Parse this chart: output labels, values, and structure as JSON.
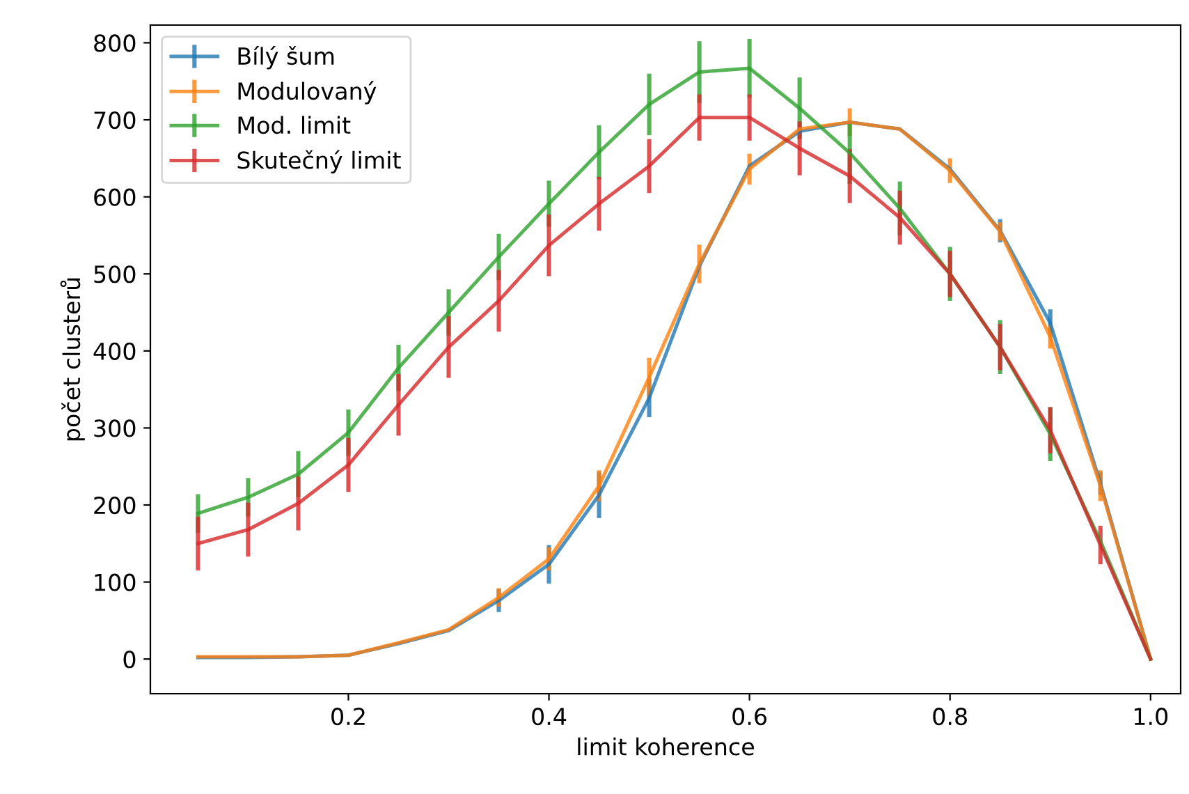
{
  "chart_data": {
    "type": "line",
    "xlabel": "limit koherence",
    "ylabel": "počet clusterů",
    "x": [
      0.05,
      0.1,
      0.15,
      0.2,
      0.25,
      0.3,
      0.35,
      0.4,
      0.45,
      0.5,
      0.55,
      0.6,
      0.65,
      0.7,
      0.75,
      0.8,
      0.85,
      0.9,
      0.95,
      1.0
    ],
    "series": [
      {
        "name": "Bílý šum",
        "color": "#1f77b4",
        "values": [
          2,
          2,
          3,
          5,
          20,
          37,
          76,
          123,
          213,
          339,
          510,
          640,
          685,
          697,
          688,
          636,
          556,
          436,
          228,
          0
        ],
        "errors": [
          null,
          null,
          null,
          null,
          null,
          null,
          15,
          25,
          30,
          25,
          null,
          null,
          null,
          null,
          null,
          null,
          15,
          18,
          15,
          null
        ]
      },
      {
        "name": "Modulovaný",
        "color": "#ff7f0e",
        "values": [
          3,
          3,
          3,
          5,
          21,
          38,
          80,
          130,
          225,
          366,
          513,
          636,
          688,
          697,
          688,
          634,
          555,
          418,
          225,
          0
        ],
        "errors": [
          null,
          null,
          null,
          null,
          null,
          null,
          12,
          15,
          20,
          25,
          25,
          20,
          null,
          18,
          null,
          16,
          12,
          15,
          20,
          null
        ]
      },
      {
        "name": "Mod. limit",
        "color": "#2ca02c",
        "values": [
          189,
          210,
          240,
          294,
          378,
          450,
          522,
          591,
          658,
          720,
          762,
          767,
          715,
          657,
          585,
          500,
          405,
          292,
          153,
          0
        ],
        "errors": [
          25,
          25,
          30,
          30,
          30,
          30,
          30,
          30,
          35,
          40,
          40,
          38,
          40,
          40,
          35,
          35,
          35,
          35,
          null,
          null
        ]
      },
      {
        "name": "Skutečný limit",
        "color": "#d62728",
        "values": [
          150,
          168,
          202,
          252,
          330,
          405,
          465,
          537,
          591,
          640,
          703,
          703,
          663,
          627,
          573,
          500,
          405,
          297,
          148,
          0
        ],
        "errors": [
          35,
          35,
          35,
          35,
          40,
          40,
          40,
          40,
          35,
          35,
          30,
          30,
          35,
          35,
          35,
          30,
          30,
          30,
          25,
          null
        ]
      }
    ],
    "xlim": [
      0.0025,
      1.03
    ],
    "ylim": [
      -45,
      823
    ],
    "xticks": [
      0.2,
      0.4,
      0.6,
      0.8,
      {
        "value": 1,
        "label": "1.0"
      }
    ],
    "yticks": [
      0,
      100,
      200,
      300,
      400,
      500,
      600,
      700,
      800
    ],
    "legend": "top left",
    "grid": false
  }
}
